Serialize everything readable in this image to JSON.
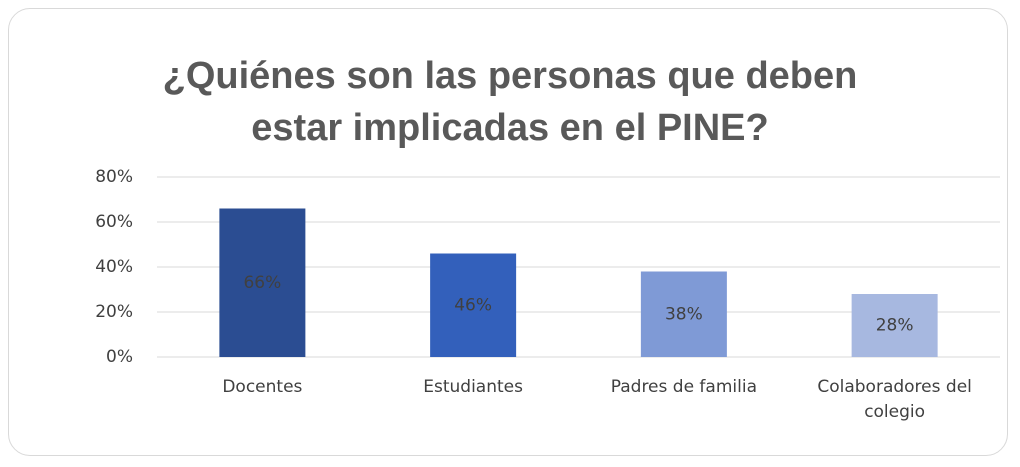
{
  "chart_data": {
    "type": "bar",
    "title": "¿Quiénes son las personas que deben estar implicadas en el PINE?",
    "categories": [
      "Docentes",
      "Estudiantes",
      "Padres de familia",
      "Colaboradores del colegio"
    ],
    "values": [
      66,
      46,
      38,
      28
    ],
    "value_labels": [
      "66%",
      "46%",
      "38%",
      "28%"
    ],
    "colors": [
      "#2b4d92",
      "#3360bb",
      "#7f9ad6",
      "#a7b8e0"
    ],
    "ylim": [
      0,
      80
    ],
    "yticks": [
      {
        "value": 0,
        "label": "0%"
      },
      {
        "value": 20,
        "label": "20%"
      },
      {
        "value": 40,
        "label": "40%"
      },
      {
        "value": 60,
        "label": "60%"
      },
      {
        "value": 80,
        "label": "80%"
      }
    ],
    "grid": true
  }
}
